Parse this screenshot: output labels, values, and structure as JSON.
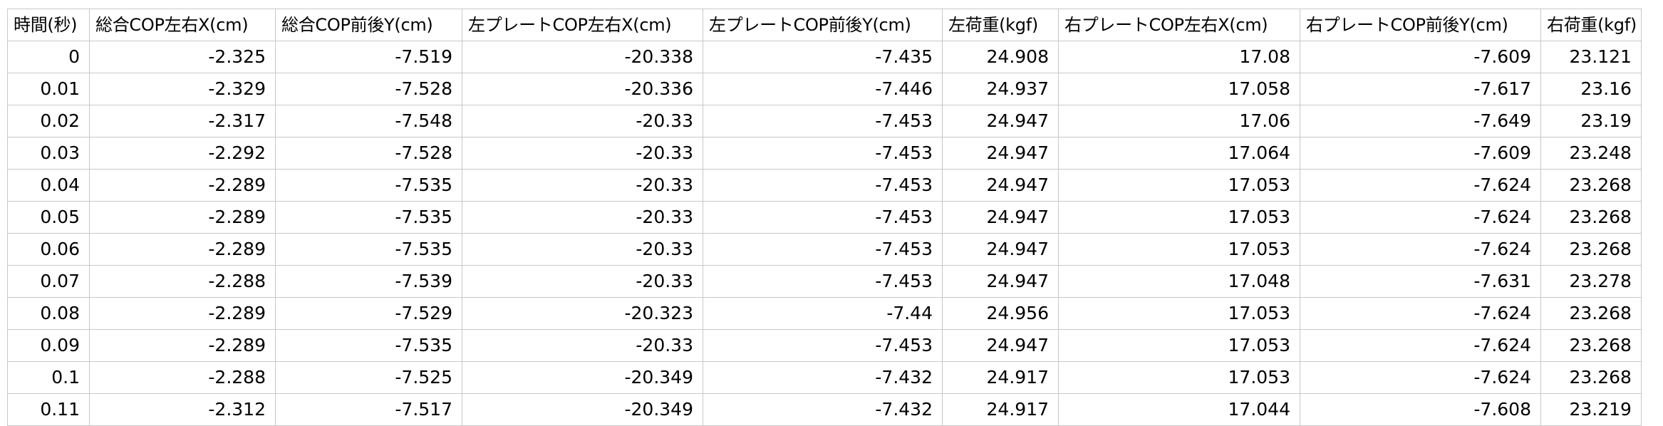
{
  "table": {
    "headers": [
      "時間(秒)",
      "総合COP左右X(cm)",
      "総合COP前後Y(cm)",
      "左プレートCOP左右X(cm)",
      "左プレートCOP前後Y(cm)",
      "左荷重(kgf)",
      "右プレートCOP左右X(cm)",
      "右プレートCOP前後Y(cm)",
      "右荷重(kgf)"
    ],
    "rows": [
      [
        "0",
        "-2.325",
        "-7.519",
        "-20.338",
        "-7.435",
        "24.908",
        "17.08",
        "-7.609",
        "23.121"
      ],
      [
        "0.01",
        "-2.329",
        "-7.528",
        "-20.336",
        "-7.446",
        "24.937",
        "17.058",
        "-7.617",
        "23.16"
      ],
      [
        "0.02",
        "-2.317",
        "-7.548",
        "-20.33",
        "-7.453",
        "24.947",
        "17.06",
        "-7.649",
        "23.19"
      ],
      [
        "0.03",
        "-2.292",
        "-7.528",
        "-20.33",
        "-7.453",
        "24.947",
        "17.064",
        "-7.609",
        "23.248"
      ],
      [
        "0.04",
        "-2.289",
        "-7.535",
        "-20.33",
        "-7.453",
        "24.947",
        "17.053",
        "-7.624",
        "23.268"
      ],
      [
        "0.05",
        "-2.289",
        "-7.535",
        "-20.33",
        "-7.453",
        "24.947",
        "17.053",
        "-7.624",
        "23.268"
      ],
      [
        "0.06",
        "-2.289",
        "-7.535",
        "-20.33",
        "-7.453",
        "24.947",
        "17.053",
        "-7.624",
        "23.268"
      ],
      [
        "0.07",
        "-2.288",
        "-7.539",
        "-20.33",
        "-7.453",
        "24.947",
        "17.048",
        "-7.631",
        "23.278"
      ],
      [
        "0.08",
        "-2.289",
        "-7.529",
        "-20.323",
        "-7.44",
        "24.956",
        "17.053",
        "-7.624",
        "23.268"
      ],
      [
        "0.09",
        "-2.289",
        "-7.535",
        "-20.33",
        "-7.453",
        "24.947",
        "17.053",
        "-7.624",
        "23.268"
      ],
      [
        "0.1",
        "-2.288",
        "-7.525",
        "-20.349",
        "-7.432",
        "24.917",
        "17.053",
        "-7.624",
        "23.268"
      ],
      [
        "0.11",
        "-2.312",
        "-7.517",
        "-20.349",
        "-7.432",
        "24.917",
        "17.044",
        "-7.608",
        "23.219"
      ]
    ]
  }
}
